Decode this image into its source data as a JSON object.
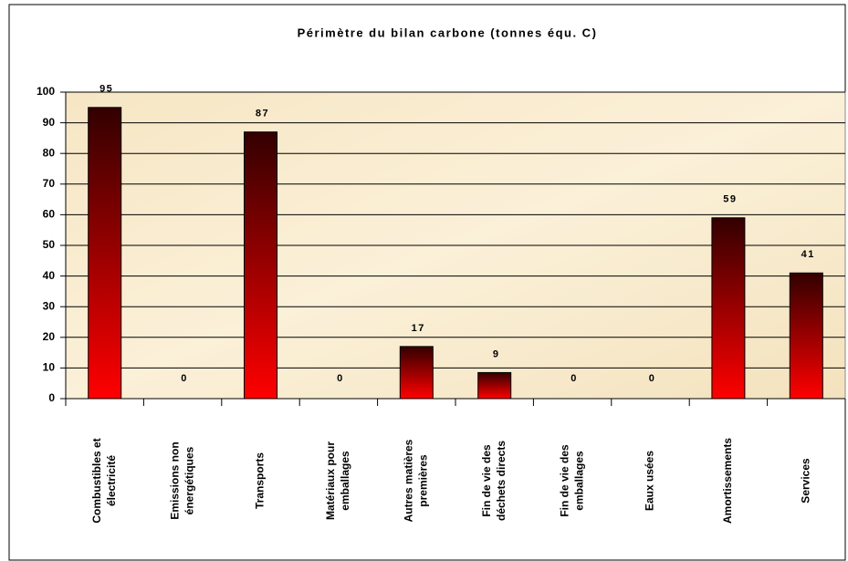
{
  "chart_data": {
    "type": "bar",
    "title": "Périmètre du bilan carbone (tonnes équ. C)",
    "categories": [
      [
        "Combustibles et",
        "électricité"
      ],
      [
        "Emissions non",
        "énergétiques"
      ],
      [
        "Transports"
      ],
      [
        "Matériaux pour",
        "emballages"
      ],
      [
        "Autres matières",
        "premières"
      ],
      [
        "Fin de vie des",
        "déchets directs"
      ],
      [
        "Fin de vie des",
        "emballages"
      ],
      [
        "Eaux usées"
      ],
      [
        "Amortissements"
      ],
      [
        "Services"
      ]
    ],
    "values": [
      95,
      0,
      87,
      0,
      17,
      8.5,
      0,
      0,
      59,
      41
    ],
    "value_labels": [
      "95",
      "0",
      "87",
      "0",
      "17",
      "9",
      "0",
      "0",
      "59",
      "41"
    ],
    "colors": [
      "#330000",
      "#ff0000"
    ],
    "ylim": [
      0,
      100
    ],
    "yticks": [
      0,
      10,
      20,
      30,
      40,
      50,
      60,
      70,
      80,
      90,
      100
    ],
    "grid": true
  }
}
